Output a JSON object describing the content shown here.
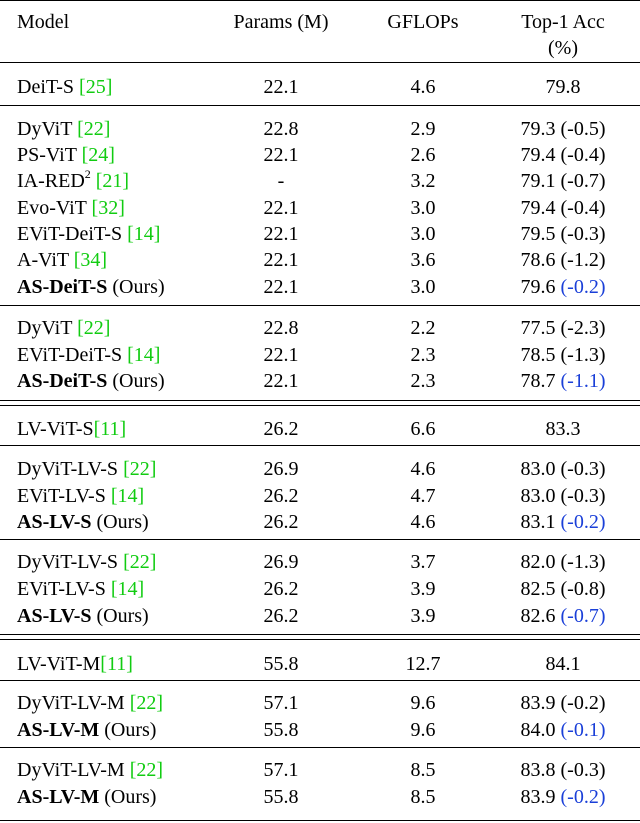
{
  "header": {
    "model": "Model",
    "params": "Params (M)",
    "gflops": "GFLOPs",
    "acc_line1": "Top-1 Acc",
    "acc_line2": "(%)"
  },
  "rows": [
    {
      "name": "DeiT-S ",
      "ref": "[25]",
      "suffix": "",
      "bold": false,
      "params": "22.1",
      "gflops": "4.6",
      "acc": "79.8",
      "delta": "",
      "blue": false
    },
    {
      "name": "DyViT ",
      "ref": "[22]",
      "suffix": "",
      "bold": false,
      "params": "22.8",
      "gflops": "2.9",
      "acc": "79.3 ",
      "delta": "(-0.5)",
      "blue": false
    },
    {
      "name": "PS-ViT ",
      "ref": "[24]",
      "suffix": "",
      "bold": false,
      "params": "22.1",
      "gflops": "2.6",
      "acc": "79.4 ",
      "delta": "(-0.4)",
      "blue": false
    },
    {
      "name": "IA-RED",
      "sup": "2",
      "name2": " ",
      "ref": "[21]",
      "suffix": "",
      "bold": false,
      "params": "-",
      "gflops": "3.2",
      "acc": "79.1 ",
      "delta": "(-0.7)",
      "blue": false
    },
    {
      "name": "Evo-ViT ",
      "ref": "[32]",
      "suffix": "",
      "bold": false,
      "params": "22.1",
      "gflops": "3.0",
      "acc": "79.4 ",
      "delta": "(-0.4)",
      "blue": false
    },
    {
      "name": "EViT-DeiT-S ",
      "ref": "[14]",
      "suffix": "",
      "bold": false,
      "params": "22.1",
      "gflops": "3.0",
      "acc": "79.5 ",
      "delta": "(-0.3)",
      "blue": false
    },
    {
      "name": "A-ViT ",
      "ref": "[34]",
      "suffix": "",
      "bold": false,
      "params": "22.1",
      "gflops": "3.6",
      "acc": "78.6 ",
      "delta": "(-1.2)",
      "blue": false
    },
    {
      "name": "AS-DeiT-S",
      "ref": "",
      "suffix": " (Ours)",
      "bold": true,
      "params": "22.1",
      "gflops": "3.0",
      "acc": "79.6 ",
      "delta": "(-0.2)",
      "blue": true
    },
    {
      "name": "DyViT ",
      "ref": "[22]",
      "suffix": "",
      "bold": false,
      "params": "22.8",
      "gflops": "2.2",
      "acc": "77.5 ",
      "delta": "(-2.3)",
      "blue": false
    },
    {
      "name": "EViT-DeiT-S ",
      "ref": "[14]",
      "suffix": "",
      "bold": false,
      "params": "22.1",
      "gflops": "2.3",
      "acc": "78.5 ",
      "delta": "(-1.3)",
      "blue": false
    },
    {
      "name": "AS-DeiT-S",
      "ref": "",
      "suffix": " (Ours)",
      "bold": true,
      "params": "22.1",
      "gflops": "2.3",
      "acc": "78.7 ",
      "delta": "(-1.1)",
      "blue": true
    },
    {
      "name": "LV-ViT-S",
      "ref": "[11]",
      "suffix": "",
      "bold": false,
      "params": "26.2",
      "gflops": "6.6",
      "acc": "83.3",
      "delta": "",
      "blue": false
    },
    {
      "name": "DyViT-LV-S ",
      "ref": "[22]",
      "suffix": "",
      "bold": false,
      "params": "26.9",
      "gflops": "4.6",
      "acc": "83.0 ",
      "delta": "(-0.3)",
      "blue": false
    },
    {
      "name": "EViT-LV-S ",
      "ref": "[14]",
      "suffix": "",
      "bold": false,
      "params": "26.2",
      "gflops": "4.7",
      "acc": "83.0 ",
      "delta": "(-0.3)",
      "blue": false
    },
    {
      "name": "AS-LV-S",
      "ref": "",
      "suffix": " (Ours)",
      "bold": true,
      "params": "26.2",
      "gflops": "4.6",
      "acc": "83.1 ",
      "delta": "(-0.2)",
      "blue": true
    },
    {
      "name": "DyViT-LV-S ",
      "ref": "[22]",
      "suffix": "",
      "bold": false,
      "params": "26.9",
      "gflops": "3.7",
      "acc": "82.0 ",
      "delta": "(-1.3)",
      "blue": false
    },
    {
      "name": "EViT-LV-S ",
      "ref": "[14]",
      "suffix": "",
      "bold": false,
      "params": "26.2",
      "gflops": "3.9",
      "acc": "82.5 ",
      "delta": "(-0.8)",
      "blue": false
    },
    {
      "name": "AS-LV-S",
      "ref": "",
      "suffix": " (Ours)",
      "bold": true,
      "params": "26.2",
      "gflops": "3.9",
      "acc": "82.6 ",
      "delta": "(-0.7)",
      "blue": true
    },
    {
      "name": "LV-ViT-M",
      "ref": "[11]",
      "suffix": "",
      "bold": false,
      "params": "55.8",
      "gflops": "12.7",
      "acc": "84.1",
      "delta": "",
      "blue": false
    },
    {
      "name": "DyViT-LV-M ",
      "ref": "[22]",
      "suffix": "",
      "bold": false,
      "params": "57.1",
      "gflops": "9.6",
      "acc": "83.9 ",
      "delta": "(-0.2)",
      "blue": false
    },
    {
      "name": "AS-LV-M",
      "ref": "",
      "suffix": " (Ours)",
      "bold": true,
      "params": "55.8",
      "gflops": "9.6",
      "acc": "84.0 ",
      "delta": "(-0.1)",
      "blue": true
    },
    {
      "name": "DyViT-LV-M ",
      "ref": "[22]",
      "suffix": "",
      "bold": false,
      "params": "57.1",
      "gflops": "8.5",
      "acc": "83.8 ",
      "delta": "(-0.3)",
      "blue": false
    },
    {
      "name": "AS-LV-M",
      "ref": "",
      "suffix": " (Ours)",
      "bold": true,
      "params": "55.8",
      "gflops": "8.5",
      "acc": "83.9 ",
      "delta": "(-0.2)",
      "blue": true
    }
  ],
  "colors": {
    "ref": "#11cc11",
    "delta_blue": "#1a3fd8",
    "rule": "#000000"
  }
}
